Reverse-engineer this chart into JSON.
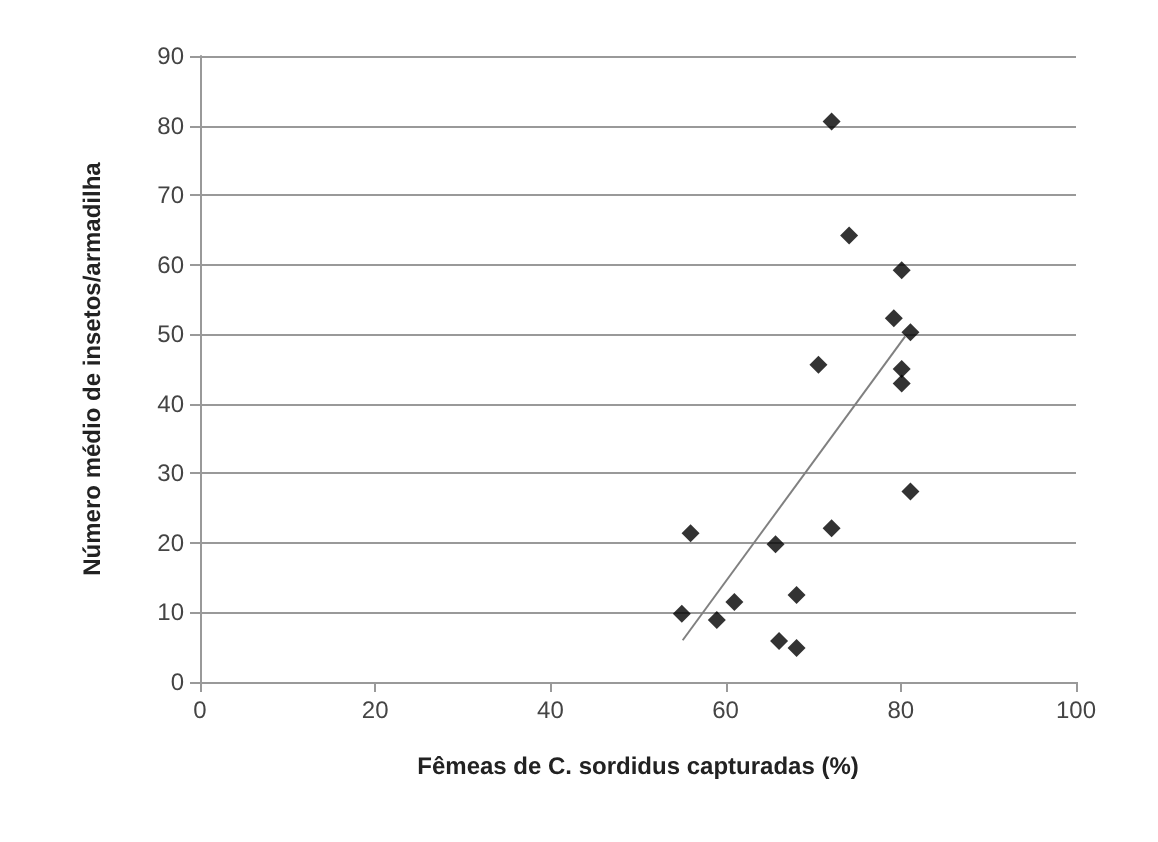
{
  "chart_data": {
    "type": "scatter",
    "xlabel": "Fêmeas de C. sordidus capturadas (%)",
    "ylabel": "Número médio de insetos/armadilha",
    "series": [
      {
        "color": "#000000",
        "marker": "diamond",
        "x": [
          72.1,
          74.1,
          80.1,
          79.2,
          81.1,
          70.6,
          80.1,
          80.1,
          81.1,
          56.0,
          72.1,
          65.7,
          68.1,
          61.0,
          55.0,
          59.0,
          66.1,
          68.1
        ],
        "values": [
          80.6,
          64.2,
          59.2,
          52.3,
          50.3,
          45.6,
          45.0,
          42.9,
          27.4,
          21.4,
          22.1,
          19.8,
          12.5,
          11.5,
          9.8,
          8.9,
          5.9,
          4.9
        ]
      },
      {
        "type": "line",
        "color": "#808080",
        "marker": "none",
        "x": [
          55.1,
          80.5
        ],
        "values": [
          6.0,
          49.7
        ]
      }
    ],
    "xlim": [
      0,
      100
    ],
    "xticks": [
      0,
      20,
      40,
      60,
      80,
      100
    ],
    "ylim": [
      0,
      90
    ],
    "yticks": [
      0,
      10,
      20,
      30,
      40,
      50,
      60,
      70,
      80,
      90
    ],
    "grid": "y"
  }
}
